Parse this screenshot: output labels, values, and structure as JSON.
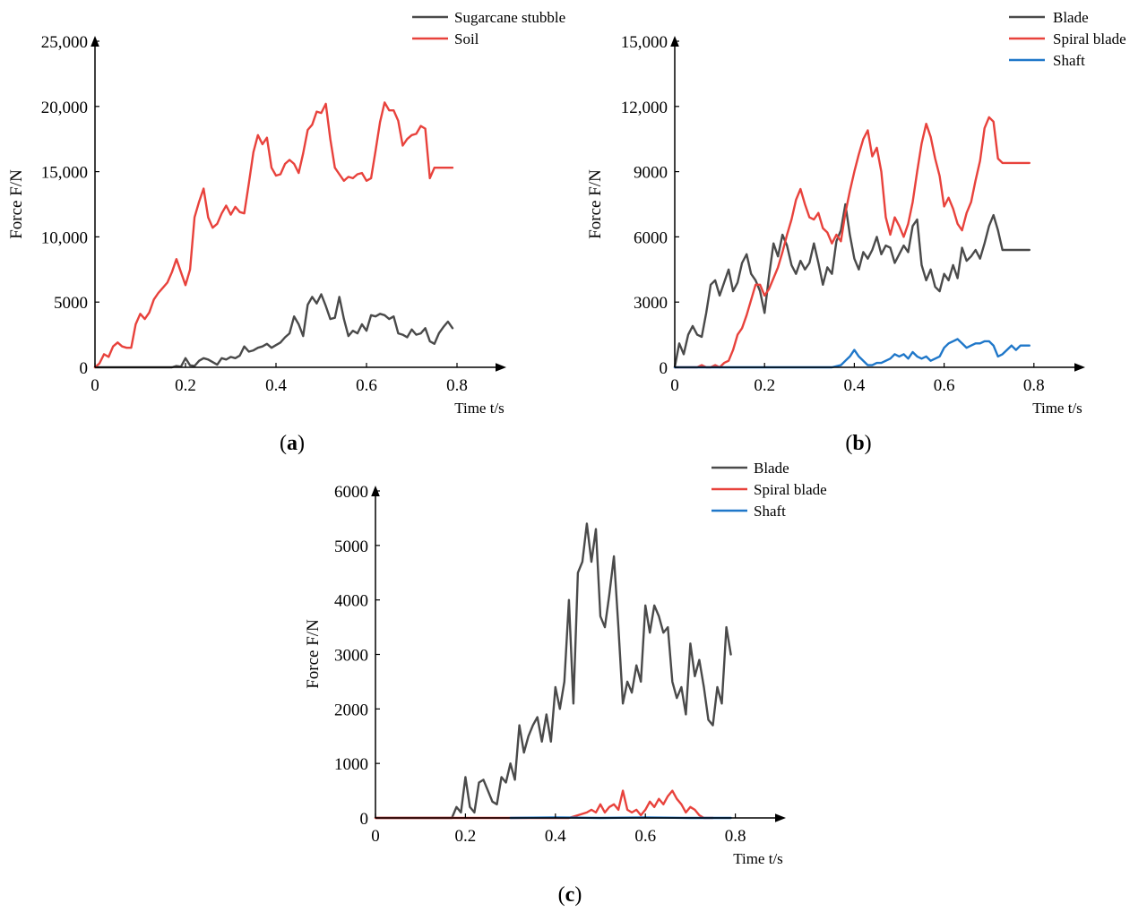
{
  "chart_data": [
    {
      "type": "line",
      "panel_label": "(a)",
      "panel_letter": "a",
      "title": "",
      "xlabel": "Time t/s",
      "ylabel": "Force F/N",
      "xlim": [
        0,
        0.9
      ],
      "ylim": [
        0,
        25000
      ],
      "x_ticks": [
        0,
        0.2,
        0.4,
        0.6,
        0.8
      ],
      "x_tick_labels": [
        "0",
        "0.2",
        "0.4",
        "0.6",
        "0.8"
      ],
      "y_ticks": [
        0,
        5000,
        10000,
        15000,
        20000,
        25000
      ],
      "y_tick_labels": [
        "0",
        "5000",
        "10,000",
        "15,000",
        "20,000",
        "25,000"
      ],
      "legend_position": "top-right",
      "series": [
        {
          "name": "Sugarcane stubble",
          "color": "#4a4a4a",
          "x": [
            0,
            0.17,
            0.18,
            0.19,
            0.2,
            0.21,
            0.22,
            0.23,
            0.24,
            0.25,
            0.26,
            0.27,
            0.28,
            0.29,
            0.3,
            0.31,
            0.32,
            0.33,
            0.34,
            0.35,
            0.36,
            0.37,
            0.38,
            0.39,
            0.4,
            0.41,
            0.42,
            0.43,
            0.44,
            0.45,
            0.46,
            0.47,
            0.48,
            0.49,
            0.5,
            0.51,
            0.52,
            0.53,
            0.54,
            0.55,
            0.56,
            0.57,
            0.58,
            0.59,
            0.6,
            0.61,
            0.62,
            0.63,
            0.64,
            0.65,
            0.66,
            0.67,
            0.68,
            0.69,
            0.7,
            0.71,
            0.72,
            0.73,
            0.74,
            0.75,
            0.76,
            0.77,
            0.78,
            0.79
          ],
          "values": [
            0,
            0,
            100,
            50,
            700,
            150,
            100,
            500,
            700,
            600,
            400,
            200,
            700,
            600,
            800,
            700,
            900,
            1600,
            1200,
            1300,
            1500,
            1600,
            1800,
            1500,
            1700,
            1900,
            2300,
            2600,
            3900,
            3300,
            2400,
            4800,
            5400,
            4900,
            5600,
            4700,
            3700,
            3800,
            5400,
            3700,
            2400,
            2800,
            2600,
            3300,
            2800,
            4000,
            3900,
            4100,
            4000,
            3700,
            3900,
            2600,
            2500,
            2300,
            2900,
            2500,
            2600,
            3000,
            2000,
            1800,
            2600,
            3100,
            3500,
            3000
          ]
        },
        {
          "name": "Soil",
          "color": "#e8423c",
          "x": [
            0,
            0.01,
            0.02,
            0.03,
            0.04,
            0.05,
            0.06,
            0.07,
            0.08,
            0.09,
            0.1,
            0.11,
            0.12,
            0.13,
            0.14,
            0.15,
            0.16,
            0.17,
            0.18,
            0.19,
            0.2,
            0.21,
            0.22,
            0.23,
            0.24,
            0.25,
            0.26,
            0.27,
            0.28,
            0.29,
            0.3,
            0.31,
            0.32,
            0.33,
            0.34,
            0.35,
            0.36,
            0.37,
            0.38,
            0.39,
            0.4,
            0.41,
            0.42,
            0.43,
            0.44,
            0.45,
            0.46,
            0.47,
            0.48,
            0.49,
            0.5,
            0.51,
            0.52,
            0.53,
            0.54,
            0.55,
            0.56,
            0.57,
            0.58,
            0.59,
            0.6,
            0.61,
            0.62,
            0.63,
            0.64,
            0.65,
            0.66,
            0.67,
            0.68,
            0.69,
            0.7,
            0.71,
            0.72,
            0.73,
            0.74,
            0.75,
            0.76,
            0.77,
            0.78,
            0.79
          ],
          "values": [
            0,
            300,
            1000,
            800,
            1600,
            1900,
            1600,
            1500,
            1500,
            3300,
            4100,
            3700,
            4200,
            5200,
            5700,
            6100,
            6500,
            7300,
            8300,
            7300,
            6300,
            7500,
            11500,
            12700,
            13700,
            11500,
            10700,
            11000,
            11800,
            12400,
            11700,
            12300,
            11900,
            11800,
            14100,
            16500,
            17800,
            17100,
            17600,
            15300,
            14700,
            14800,
            15600,
            15900,
            15600,
            14900,
            16400,
            18200,
            18600,
            19600,
            19500,
            20200,
            17500,
            15300,
            14800,
            14300,
            14600,
            14500,
            14800,
            14900,
            14300,
            14500,
            16600,
            18800,
            20300,
            19700,
            19700,
            18900,
            17000,
            17500,
            17800,
            17900,
            18500,
            18300,
            14500,
            15300,
            15300,
            15300,
            15300,
            15300
          ]
        }
      ]
    },
    {
      "type": "line",
      "panel_label": "(b)",
      "panel_letter": "b",
      "title": "",
      "xlabel": "Time t/s",
      "ylabel": "Force F/N",
      "xlim": [
        0,
        0.9
      ],
      "ylim": [
        0,
        15000
      ],
      "x_ticks": [
        0,
        0.2,
        0.4,
        0.6,
        0.8
      ],
      "x_tick_labels": [
        "0",
        "0.2",
        "0.4",
        "0.6",
        "0.8"
      ],
      "y_ticks": [
        0,
        3000,
        6000,
        9000,
        12000,
        15000
      ],
      "y_tick_labels": [
        "0",
        "3000",
        "6000",
        "9000",
        "12,000",
        "15,000"
      ],
      "legend_position": "top-right",
      "series": [
        {
          "name": "Blade",
          "color": "#4a4a4a",
          "x": [
            0,
            0.01,
            0.02,
            0.03,
            0.04,
            0.05,
            0.06,
            0.07,
            0.08,
            0.09,
            0.1,
            0.11,
            0.12,
            0.13,
            0.14,
            0.15,
            0.16,
            0.17,
            0.18,
            0.19,
            0.2,
            0.21,
            0.22,
            0.23,
            0.24,
            0.25,
            0.26,
            0.27,
            0.28,
            0.29,
            0.3,
            0.31,
            0.32,
            0.33,
            0.34,
            0.35,
            0.36,
            0.37,
            0.38,
            0.39,
            0.4,
            0.41,
            0.42,
            0.43,
            0.44,
            0.45,
            0.46,
            0.47,
            0.48,
            0.49,
            0.5,
            0.51,
            0.52,
            0.53,
            0.54,
            0.55,
            0.56,
            0.57,
            0.58,
            0.59,
            0.6,
            0.61,
            0.62,
            0.63,
            0.64,
            0.65,
            0.66,
            0.67,
            0.68,
            0.69,
            0.7,
            0.71,
            0.72,
            0.73,
            0.74,
            0.75,
            0.76,
            0.77,
            0.78,
            0.79
          ],
          "values": [
            0,
            1100,
            600,
            1500,
            1900,
            1500,
            1400,
            2500,
            3800,
            4000,
            3300,
            3900,
            4500,
            3500,
            3900,
            4800,
            5200,
            4300,
            4000,
            3500,
            2500,
            4200,
            5700,
            5100,
            6100,
            5600,
            4700,
            4300,
            4900,
            4500,
            4800,
            5700,
            4800,
            3800,
            4600,
            4300,
            5800,
            6300,
            7500,
            6100,
            5000,
            4500,
            5300,
            5000,
            5400,
            6000,
            5200,
            5600,
            5500,
            4800,
            5200,
            5600,
            5300,
            6500,
            6800,
            4700,
            4000,
            4500,
            3700,
            3500,
            4300,
            4000,
            4700,
            4100,
            5500,
            4900,
            5100,
            5400,
            5000,
            5700,
            6500,
            7000,
            6300,
            5400,
            5400,
            5400,
            5400,
            5400,
            5400,
            5400
          ]
        },
        {
          "name": "Spiral blade",
          "color": "#e8423c",
          "x": [
            0,
            0.05,
            0.06,
            0.07,
            0.08,
            0.09,
            0.1,
            0.11,
            0.12,
            0.13,
            0.14,
            0.15,
            0.16,
            0.17,
            0.18,
            0.19,
            0.2,
            0.21,
            0.22,
            0.23,
            0.24,
            0.25,
            0.26,
            0.27,
            0.28,
            0.29,
            0.3,
            0.31,
            0.32,
            0.33,
            0.34,
            0.35,
            0.36,
            0.37,
            0.38,
            0.39,
            0.4,
            0.41,
            0.42,
            0.43,
            0.44,
            0.45,
            0.46,
            0.47,
            0.48,
            0.49,
            0.5,
            0.51,
            0.52,
            0.53,
            0.54,
            0.55,
            0.56,
            0.57,
            0.58,
            0.59,
            0.6,
            0.61,
            0.62,
            0.63,
            0.64,
            0.65,
            0.66,
            0.67,
            0.68,
            0.69,
            0.7,
            0.71,
            0.72,
            0.73,
            0.74,
            0.75,
            0.76,
            0.77,
            0.78,
            0.79
          ],
          "values": [
            0,
            0,
            100,
            0,
            0,
            100,
            0,
            200,
            300,
            800,
            1500,
            1800,
            2400,
            3100,
            3800,
            3800,
            3300,
            3600,
            4100,
            4600,
            5300,
            6100,
            6800,
            7700,
            8200,
            7500,
            6900,
            6800,
            7100,
            6400,
            6200,
            5700,
            6100,
            5800,
            7100,
            8100,
            9000,
            9800,
            10500,
            10900,
            9700,
            10100,
            9000,
            6900,
            6100,
            6900,
            6500,
            6000,
            6600,
            7600,
            9000,
            10300,
            11200,
            10600,
            9600,
            8800,
            7400,
            7800,
            7300,
            6600,
            6300,
            7100,
            7600,
            8600,
            9500,
            11000,
            11500,
            11300,
            9600,
            9400,
            9400,
            9400,
            9400,
            9400,
            9400,
            9400
          ]
        },
        {
          "name": "Shaft",
          "color": "#1f77c9",
          "x": [
            0,
            0.3,
            0.35,
            0.37,
            0.38,
            0.39,
            0.4,
            0.41,
            0.42,
            0.43,
            0.44,
            0.45,
            0.46,
            0.47,
            0.48,
            0.49,
            0.5,
            0.51,
            0.52,
            0.53,
            0.54,
            0.55,
            0.56,
            0.57,
            0.58,
            0.59,
            0.6,
            0.61,
            0.62,
            0.63,
            0.64,
            0.65,
            0.66,
            0.67,
            0.68,
            0.69,
            0.7,
            0.71,
            0.72,
            0.73,
            0.74,
            0.75,
            0.76,
            0.77,
            0.78,
            0.79
          ],
          "values": [
            0,
            0,
            0,
            100,
            300,
            500,
            800,
            500,
            300,
            100,
            100,
            200,
            200,
            300,
            400,
            600,
            500,
            600,
            400,
            700,
            500,
            400,
            500,
            300,
            400,
            500,
            900,
            1100,
            1200,
            1300,
            1100,
            900,
            1000,
            1100,
            1100,
            1200,
            1200,
            1000,
            500,
            600,
            800,
            1000,
            800,
            1000,
            1000,
            1000
          ]
        }
      ]
    },
    {
      "type": "line",
      "panel_label": "(c)",
      "panel_letter": "c",
      "title": "",
      "xlabel": "Time t/s",
      "ylabel": "Force F/N",
      "xlim": [
        0,
        0.9
      ],
      "ylim": [
        0,
        6000
      ],
      "x_ticks": [
        0,
        0.2,
        0.4,
        0.6,
        0.8
      ],
      "x_tick_labels": [
        "0",
        "0.2",
        "0.4",
        "0.6",
        "0.8"
      ],
      "y_ticks": [
        0,
        1000,
        2000,
        3000,
        4000,
        5000,
        6000
      ],
      "y_tick_labels": [
        "0",
        "1000",
        "2000",
        "3000",
        "4000",
        "5000",
        "6000"
      ],
      "legend_position": "top-right",
      "series": [
        {
          "name": "Blade",
          "color": "#4a4a4a",
          "x": [
            0,
            0.17,
            0.18,
            0.19,
            0.2,
            0.21,
            0.22,
            0.23,
            0.24,
            0.25,
            0.26,
            0.27,
            0.28,
            0.29,
            0.3,
            0.31,
            0.32,
            0.33,
            0.34,
            0.35,
            0.36,
            0.37,
            0.38,
            0.39,
            0.4,
            0.41,
            0.42,
            0.43,
            0.44,
            0.45,
            0.46,
            0.47,
            0.48,
            0.49,
            0.5,
            0.51,
            0.52,
            0.53,
            0.54,
            0.55,
            0.56,
            0.57,
            0.58,
            0.59,
            0.6,
            0.61,
            0.62,
            0.63,
            0.64,
            0.65,
            0.66,
            0.67,
            0.68,
            0.69,
            0.7,
            0.71,
            0.72,
            0.73,
            0.74,
            0.75,
            0.76,
            0.77,
            0.78,
            0.79
          ],
          "values": [
            0,
            0,
            200,
            100,
            750,
            200,
            100,
            650,
            700,
            500,
            300,
            250,
            750,
            650,
            1000,
            700,
            1700,
            1200,
            1500,
            1700,
            1850,
            1400,
            1900,
            1400,
            2400,
            2000,
            2500,
            4000,
            2100,
            4500,
            4700,
            5400,
            4700,
            5300,
            3700,
            3500,
            4100,
            4800,
            3500,
            2100,
            2500,
            2300,
            2800,
            2500,
            3900,
            3400,
            3900,
            3700,
            3400,
            3500,
            2500,
            2200,
            2400,
            1900,
            3200,
            2600,
            2900,
            2400,
            1800,
            1700,
            2400,
            2100,
            3500,
            3000
          ]
        },
        {
          "name": "Spiral blade",
          "color": "#e8423c",
          "x": [
            0,
            0.3,
            0.35,
            0.4,
            0.43,
            0.45,
            0.47,
            0.48,
            0.49,
            0.5,
            0.51,
            0.52,
            0.53,
            0.54,
            0.55,
            0.56,
            0.57,
            0.58,
            0.59,
            0.6,
            0.61,
            0.62,
            0.63,
            0.64,
            0.65,
            0.66,
            0.67,
            0.68,
            0.69,
            0.7,
            0.71,
            0.72,
            0.73,
            0.75
          ],
          "values": [
            0,
            0,
            0,
            0,
            0,
            50,
            100,
            150,
            100,
            250,
            100,
            200,
            250,
            150,
            500,
            150,
            100,
            150,
            50,
            150,
            300,
            200,
            350,
            250,
            400,
            500,
            350,
            250,
            100,
            200,
            150,
            50,
            0,
            0
          ]
        },
        {
          "name": "Shaft",
          "color": "#1f77c9",
          "x": [
            0.3,
            0.4,
            0.5,
            0.6,
            0.7,
            0.79
          ],
          "values": [
            0,
            10,
            0,
            10,
            0,
            0
          ]
        }
      ]
    }
  ]
}
